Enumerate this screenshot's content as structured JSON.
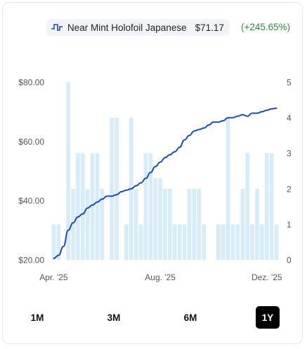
{
  "legend": {
    "icon": "step-line-icon",
    "label": "Near Mint Holofoil Japanese",
    "price": "$71.17",
    "change": "(+245.65%)",
    "change_color": "#2e8b3a"
  },
  "range_buttons": [
    {
      "label": "1M",
      "active": false
    },
    {
      "label": "3M",
      "active": false
    },
    {
      "label": "6M",
      "active": false
    },
    {
      "label": "1Y",
      "active": true
    }
  ],
  "colors": {
    "line": "#1e4bb4",
    "bars": "#d6ecfb",
    "axis_text": "#555555",
    "active_button_bg": "#000000"
  },
  "chart_data": {
    "type": "line",
    "title": "",
    "xlabel": "",
    "ylabel": "",
    "y_left": {
      "min": 20,
      "max": 80,
      "ticks": [
        "$20.00",
        "$40.00",
        "$60.00",
        "$80.00"
      ],
      "tick_values": [
        20,
        40,
        60,
        80
      ]
    },
    "y_right": {
      "min": 0,
      "max": 5,
      "ticks": [
        "0",
        "1",
        "2",
        "3",
        "4",
        "5"
      ],
      "tick_values": [
        0,
        1,
        2,
        3,
        4,
        5
      ]
    },
    "x_ticks": [
      {
        "label": "Apr. '25",
        "index": 0
      },
      {
        "label": "Aug. '25",
        "index": 22
      },
      {
        "label": "Dez. '25",
        "index": 44
      }
    ],
    "grid": false,
    "series": [
      {
        "kind": "line",
        "axis": "left",
        "values": [
          20.5,
          21.5,
          24.5,
          30.0,
          32.5,
          34.5,
          35.5,
          37.5,
          38.5,
          39.5,
          40.5,
          41.5,
          41.5,
          42.0,
          43.0,
          43.5,
          44.0,
          45.0,
          46.0,
          47.5,
          49.5,
          51.5,
          53.0,
          54.5,
          55.5,
          56.5,
          58.0,
          60.5,
          62.0,
          63.5,
          64.0,
          64.5,
          65.5,
          66.5,
          66.5,
          67.0,
          68.0,
          68.0,
          68.5,
          69.0,
          68.5,
          69.5,
          69.5,
          70.0,
          70.5,
          71.0,
          71.2
        ]
      },
      {
        "kind": "bar",
        "axis": "right",
        "values": [
          1,
          1,
          0,
          5,
          2,
          3,
          3,
          2,
          3,
          3,
          2,
          0,
          4,
          4,
          0,
          1,
          4,
          2,
          1,
          3,
          3,
          2.3,
          2.3,
          2,
          2,
          1,
          1,
          1,
          2,
          2,
          2,
          1,
          0,
          0,
          1,
          1,
          4,
          1,
          1,
          2,
          3,
          1,
          2,
          1,
          3,
          3,
          1
        ]
      }
    ]
  }
}
